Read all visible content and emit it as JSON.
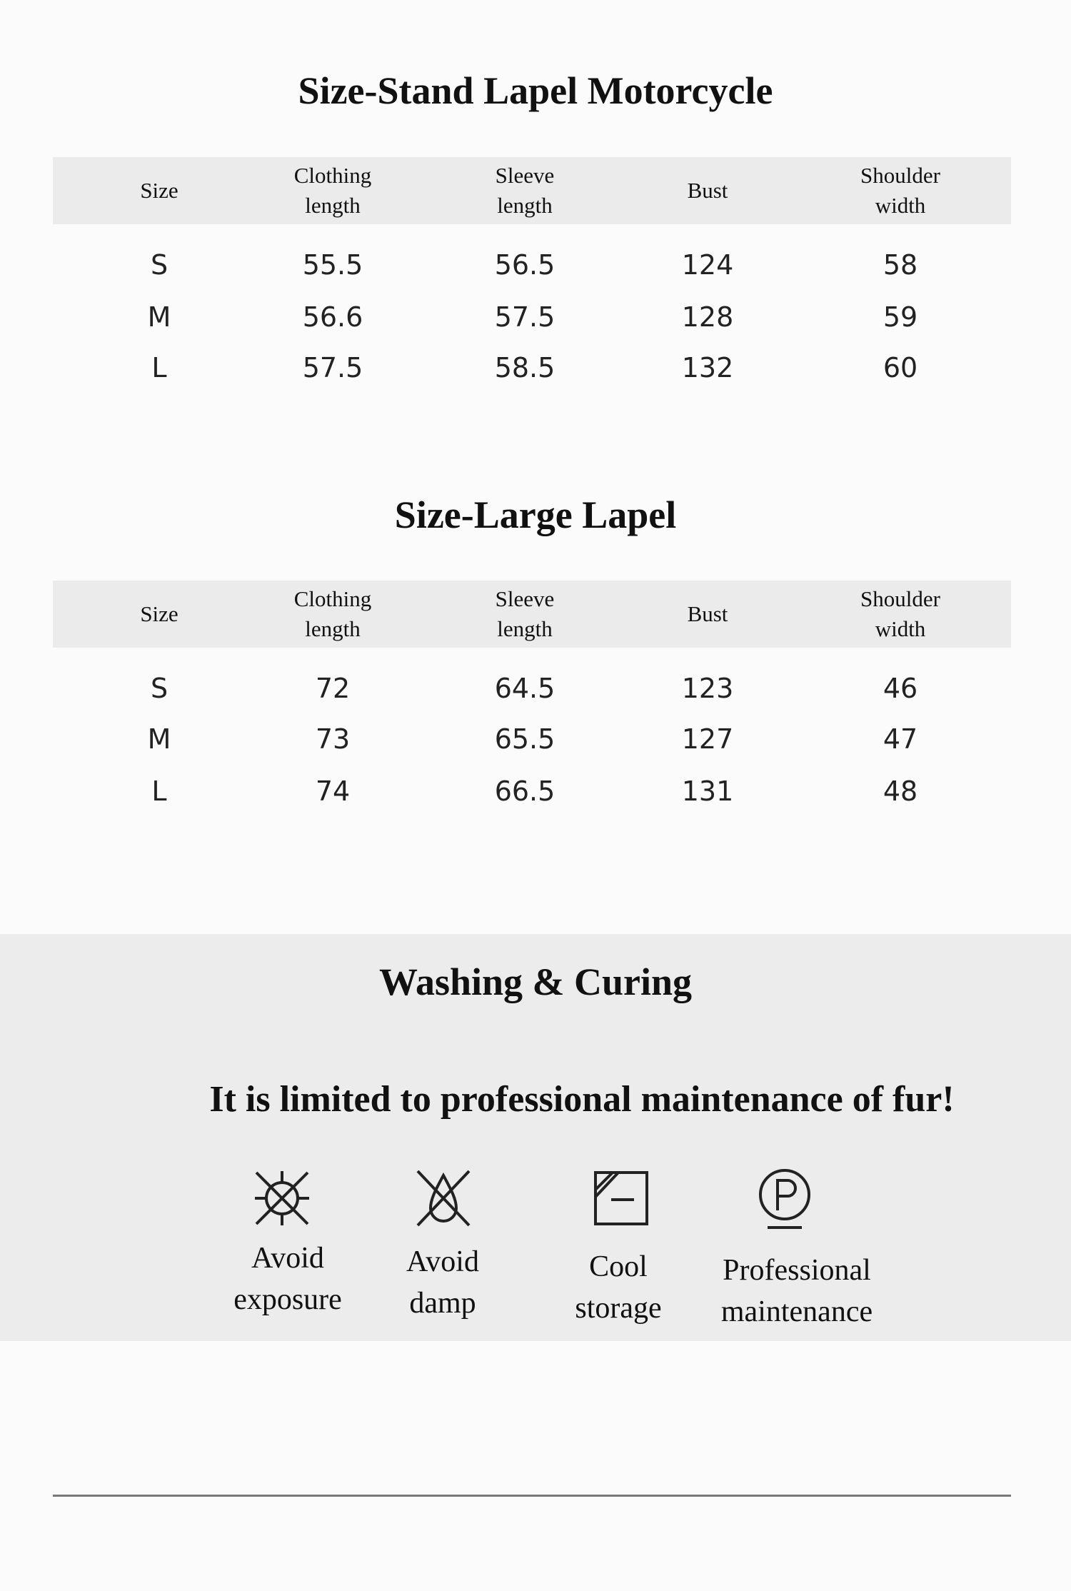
{
  "tables": [
    {
      "title": "Size-Stand Lapel Motorcycle",
      "headers": [
        "Size",
        "Clothing\nlength",
        "Sleeve\nlength",
        "Bust",
        "Shoulder\nwidth"
      ],
      "rows": [
        [
          "S",
          "55.5",
          "56.5",
          "124",
          "58"
        ],
        [
          "M",
          "56.6",
          "57.5",
          "128",
          "59"
        ],
        [
          "L",
          "57.5",
          "58.5",
          "132",
          "60"
        ]
      ]
    },
    {
      "title": "Size-Large Lapel",
      "headers": [
        "Size",
        "Clothing\nlength",
        "Sleeve\nlength",
        "Bust",
        "Shoulder\nwidth"
      ],
      "rows": [
        [
          "S",
          "72",
          "64.5",
          "123",
          "46"
        ],
        [
          "M",
          "73",
          "65.5",
          "127",
          "47"
        ],
        [
          "L",
          "74",
          "66.5",
          "131",
          "48"
        ]
      ]
    }
  ],
  "care": {
    "title": "Washing & Curing",
    "notice": "It is limited to professional maintenance of fur!",
    "items": [
      {
        "icon": "no-sun-icon",
        "label": "Avoid\nexposure"
      },
      {
        "icon": "no-water-drop-icon",
        "label": "Avoid\ndamp"
      },
      {
        "icon": "shade-dry-icon",
        "label": "Cool\nstorage"
      },
      {
        "icon": "professional-clean-p-icon",
        "label": "Professional\nmaintenance"
      }
    ]
  }
}
